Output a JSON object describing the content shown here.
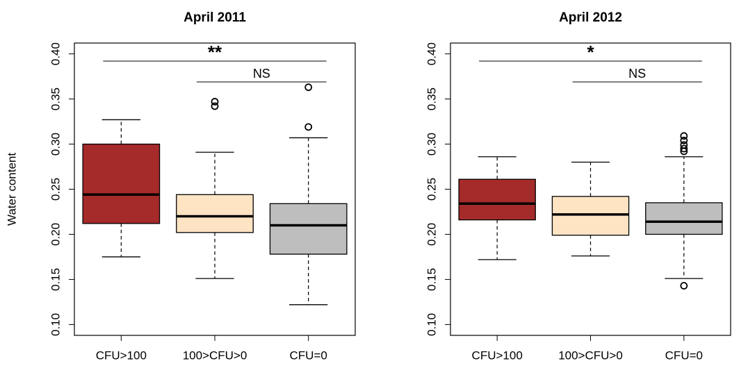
{
  "chart_data": [
    {
      "type": "box",
      "title": "April 2011",
      "ylabel": "Water content",
      "categories": [
        "CFU>100",
        "100>CFU>0",
        "CFU=0"
      ],
      "colors": [
        "#a52a2a",
        "#ffe4c4",
        "#bebebe"
      ],
      "ylim": [
        0.088,
        0.412
      ],
      "yticks": [
        {
          "value": 0.1,
          "label": "0.10"
        },
        0.15,
        {
          "value": 0.2,
          "label": "0.20"
        },
        0.25,
        {
          "value": 0.3,
          "label": "0.30"
        },
        0.35,
        {
          "value": 0.4,
          "label": "0.40"
        }
      ],
      "boxes": [
        {
          "low": 0.175,
          "q1": 0.212,
          "median": 0.244,
          "q3": 0.3,
          "high": 0.327
        },
        {
          "low": 0.151,
          "q1": 0.202,
          "median": 0.22,
          "q3": 0.244,
          "high": 0.291,
          "outliers": [
            0.347,
            0.342
          ]
        },
        {
          "low": 0.122,
          "q1": 0.178,
          "median": 0.21,
          "q3": 0.234,
          "high": 0.307,
          "outliers": [
            0.363,
            0.319
          ]
        }
      ],
      "annotations": [
        {
          "text": "**",
          "from": "CFU>100",
          "to": "CFU=0"
        },
        {
          "text": "NS",
          "from": "100>CFU>0",
          "to": "CFU=0"
        }
      ]
    },
    {
      "type": "box",
      "title": "April 2012",
      "categories": [
        "CFU>100",
        "100>CFU>0",
        "CFU=0"
      ],
      "colors": [
        "#a52a2a",
        "#ffe4c4",
        "#bebebe"
      ],
      "ylim": [
        0.088,
        0.412
      ],
      "yticks": [
        {
          "value": 0.1,
          "label": "0.10"
        },
        0.15,
        {
          "value": 0.2,
          "label": "0.20"
        },
        0.25,
        {
          "value": 0.3,
          "label": "0.30"
        },
        0.35,
        {
          "value": 0.4,
          "label": "0.40"
        }
      ],
      "boxes": [
        {
          "low": 0.172,
          "q1": 0.216,
          "median": 0.234,
          "q3": 0.261,
          "high": 0.286
        },
        {
          "low": 0.176,
          "q1": 0.199,
          "median": 0.222,
          "q3": 0.242,
          "high": 0.28
        },
        {
          "low": 0.151,
          "q1": 0.2,
          "median": 0.214,
          "q3": 0.235,
          "high": 0.286,
          "outliers": [
            0.309,
            0.304,
            0.299,
            0.295,
            0.292,
            0.143
          ]
        }
      ],
      "annotations": [
        {
          "text": "*",
          "from": "CFU>100",
          "to": "CFU=0"
        },
        {
          "text": "NS",
          "from": "100>CFU>0",
          "to": "CFU=0"
        }
      ]
    }
  ]
}
